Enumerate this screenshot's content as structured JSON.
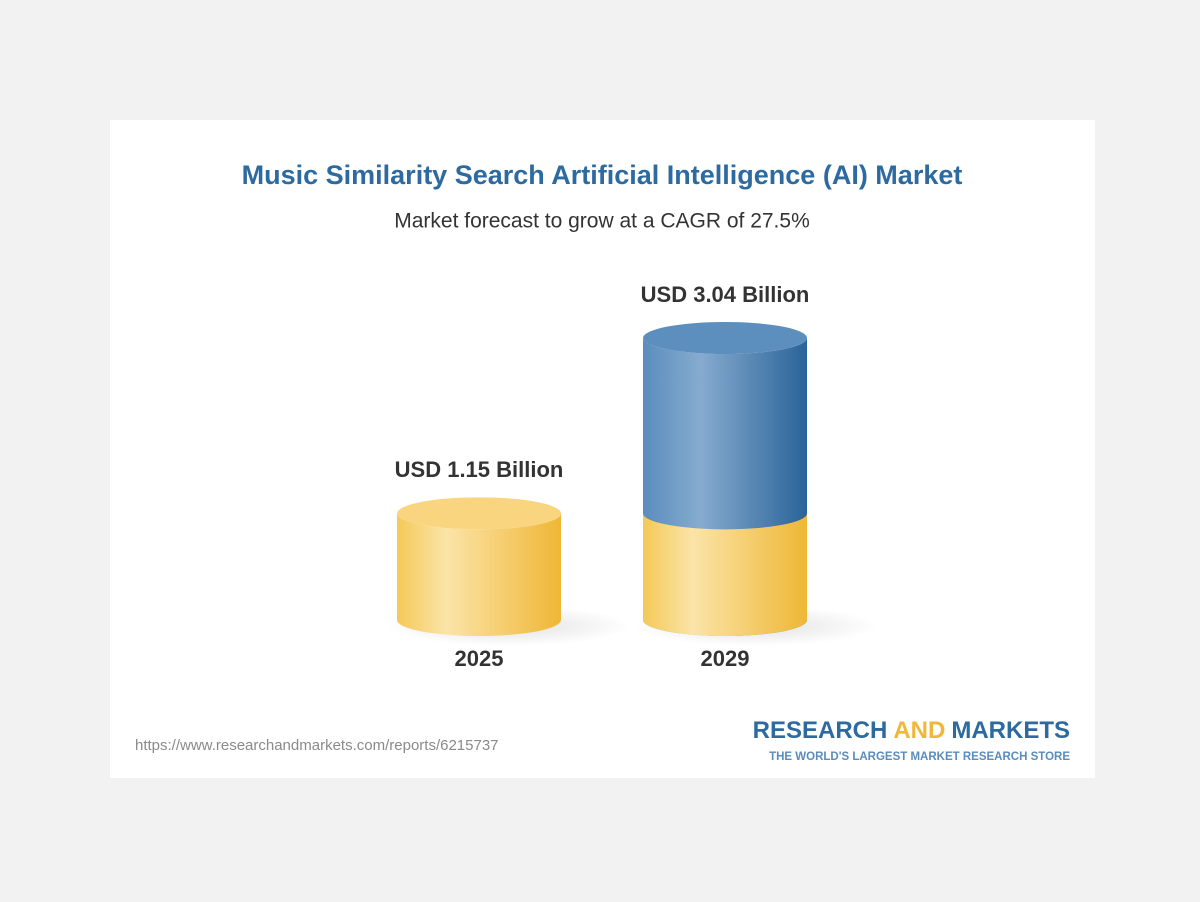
{
  "chart_data": {
    "type": "bar",
    "title": "Music Similarity Search Artificial Intelligence (AI) Market",
    "subtitle": "Market forecast to grow at a CAGR of 27.5%",
    "categories": [
      "2025",
      "2029"
    ],
    "values": [
      1.15,
      3.04
    ],
    "value_labels": [
      "USD 1.15 Billion",
      "USD 3.04 Billion"
    ],
    "colors": [
      "#f3c24e",
      "#3a76ab"
    ]
  },
  "footer": {
    "source": "https://www.researchandmarkets.com/reports/6215737",
    "logo": [
      "RESEARCH",
      "AND",
      "MARKETS"
    ],
    "tagline": "THE WORLD'S LARGEST MARKET RESEARCH STORE"
  }
}
